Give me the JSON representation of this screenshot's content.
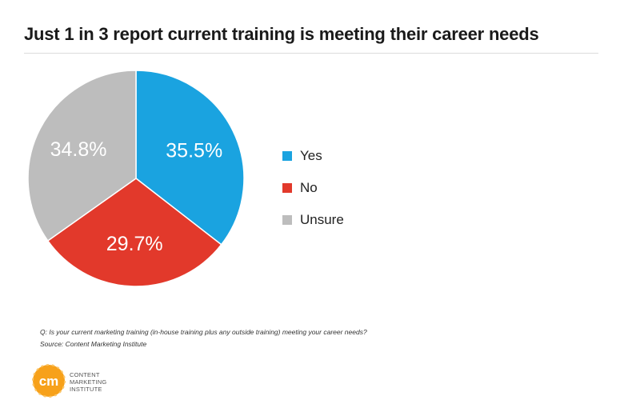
{
  "title": "Just 1 in 3 report current training is meeting their career needs",
  "chart_data": {
    "type": "pie",
    "title": "Just 1 in 3 report current training is meeting their career needs",
    "slices": [
      {
        "label": "Yes",
        "value": 35.5,
        "value_label": "35.5%",
        "color": "#1aa3e0"
      },
      {
        "label": "No",
        "value": 29.7,
        "value_label": "29.7%",
        "color": "#e2392b"
      },
      {
        "label": "Unsure",
        "value": 34.8,
        "value_label": "34.8%",
        "color": "#bdbdbd"
      }
    ],
    "legend_position": "right",
    "start_angle": "12 o'clock",
    "direction": "clockwise"
  },
  "footnote": {
    "question": "Q: Is your current marketing training (in-house training plus any outside training) meeting your career needs?",
    "source": "Source: Content Marketing Institute"
  },
  "logo": {
    "mark": "cm",
    "lines": [
      "CONTENT",
      "MARKETING",
      "INSTITUTE"
    ],
    "color": "#f7a11a"
  }
}
